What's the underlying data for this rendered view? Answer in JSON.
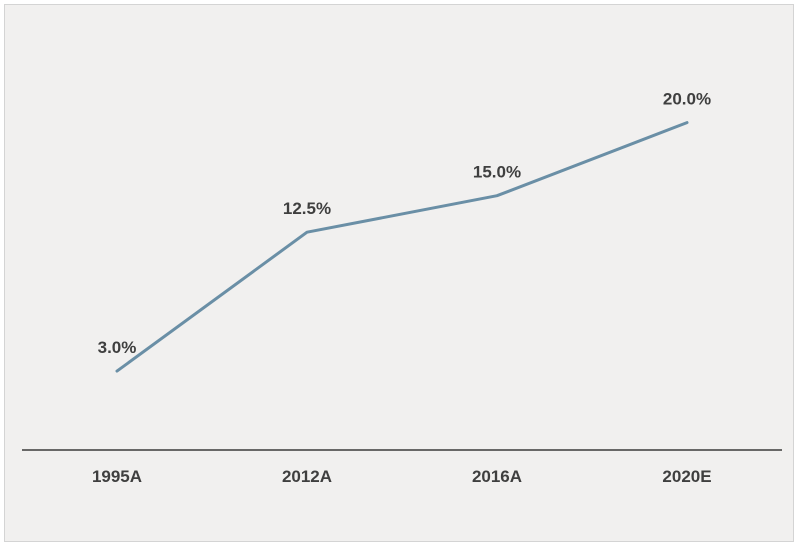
{
  "chart_data": {
    "type": "line",
    "categories": [
      "1995A",
      "2012A",
      "2016A",
      "2020E"
    ],
    "series": [
      {
        "values": [
          3.0,
          12.5,
          15.0,
          20.0
        ],
        "data_labels": [
          "3.0%",
          "12.5%",
          "15.0%",
          "20.0%"
        ]
      }
    ],
    "title": "",
    "xlabel": "",
    "ylabel": "",
    "ylim": [
      0,
      22
    ],
    "grid": false,
    "legend": "none",
    "colors": {
      "line": "#6a8fa6",
      "axis": "#3a3a3a",
      "text": "#3f3f3f",
      "background": "#f1f0ef"
    }
  }
}
